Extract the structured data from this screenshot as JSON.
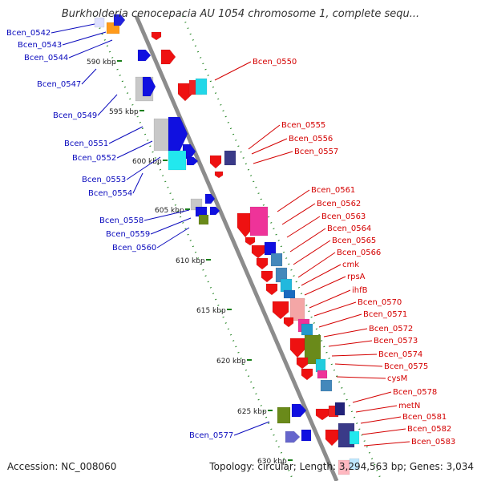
{
  "map": {
    "title": "Burkholderia cenocepacia AU 1054 chromosome 1, complete sequ...",
    "accession_text": "Accession: NC_008060",
    "stats_text": "Topology: circular; Length: 3,294,563 bp; Genes: 3,034"
  },
  "ticks": [
    "590 kbp",
    "595 kbp",
    "600 kbp",
    "605 kbp",
    "610 kbp",
    "615 kbp",
    "620 kbp",
    "625 kbp",
    "630 kbp"
  ],
  "left_labels": [
    "Bcen_0542",
    "Bcen_0543",
    "Bcen_0544",
    "Bcen_0547",
    "Bcen_0549",
    "Bcen_0551",
    "Bcen_0552",
    "Bcen_0553",
    "Bcen_0554",
    "Bcen_0558",
    "Bcen_0559",
    "Bcen_0560",
    "Bcen_0577"
  ],
  "right_labels": [
    "Bcen_0550",
    "Bcen_0555",
    "Bcen_0556",
    "Bcen_0557",
    "Bcen_0561",
    "Bcen_0562",
    "Bcen_0563",
    "Bcen_0564",
    "Bcen_0565",
    "Bcen_0566",
    "cmk",
    "rpsA",
    "ihfB",
    "Bcen_0570",
    "Bcen_0571",
    "Bcen_0572",
    "Bcen_0573",
    "Bcen_0574",
    "Bcen_0575",
    "cysM",
    "Bcen_0578",
    "metN",
    "Bcen_0581",
    "Bcen_0582",
    "Bcen_0583"
  ],
  "colors": {
    "backbone": "#8c8c8c",
    "tick_green": "#1a7f1a",
    "reverse_strand": "#1010e0",
    "forward_strand": "#ee1111",
    "left_label": "#0b0bbd",
    "right_label": "#d40000"
  }
}
